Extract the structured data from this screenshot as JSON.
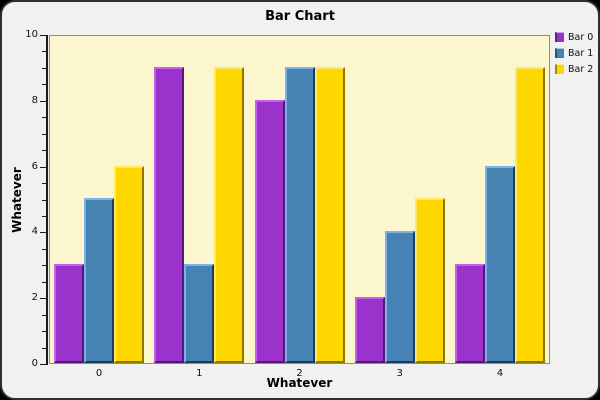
{
  "title": "Bar Chart",
  "chart_data": {
    "type": "bar",
    "title": "Bar Chart",
    "xlabel": "Whatever",
    "ylabel": "Whatever",
    "categories": [
      "0",
      "1",
      "2",
      "3",
      "4"
    ],
    "series": [
      {
        "name": "Bar 0",
        "values": [
          3,
          9,
          8,
          2,
          3
        ],
        "fill": "#9933cc",
        "light": "#c660ea",
        "dark": "#571677"
      },
      {
        "name": "Bar 1",
        "values": [
          5,
          3,
          9,
          4,
          6
        ],
        "fill": "#4682b4",
        "light": "#7ab2ec",
        "dark": "#1e3c5c"
      },
      {
        "name": "Bar 2",
        "values": [
          6,
          9,
          9,
          5,
          9
        ],
        "fill": "#ffd700",
        "light": "#ffe95e",
        "dark": "#8f7700"
      }
    ],
    "ylim": [
      0,
      10
    ],
    "y_major_step": 2,
    "y_minor_step": 0.5,
    "y_tick_labels": [
      "0",
      "2",
      "4",
      "6",
      "8",
      "10"
    ],
    "grid": false,
    "legend_position": "right",
    "plot_bg": "#fcf6ce",
    "plot_border": "#8e8e7b",
    "window_bg": "#f1f1f0"
  }
}
